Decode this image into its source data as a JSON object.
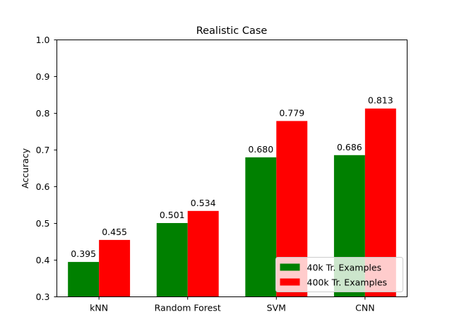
{
  "chart_data": {
    "type": "bar",
    "title": "Realistic Case",
    "xlabel": "",
    "ylabel": "Accuracy",
    "ylim": [
      0.3,
      1.0
    ],
    "yticks": [
      "0.3",
      "0.4",
      "0.5",
      "0.6",
      "0.7",
      "0.8",
      "0.9",
      "1.0"
    ],
    "categories": [
      "kNN",
      "Random Forest",
      "SVM",
      "CNN"
    ],
    "series": [
      {
        "name": "40k Tr. Examples",
        "color": "#008000",
        "values": [
          0.395,
          0.501,
          0.68,
          0.686
        ],
        "labels": [
          "0.395",
          "0.501",
          "0.680",
          "0.686"
        ]
      },
      {
        "name": "400k Tr. Examples",
        "color": "#ff0000",
        "values": [
          0.455,
          0.534,
          0.779,
          0.813
        ],
        "labels": [
          "0.455",
          "0.534",
          "0.779",
          "0.813"
        ]
      }
    ],
    "grid": false,
    "legend_position": "lower-right"
  }
}
